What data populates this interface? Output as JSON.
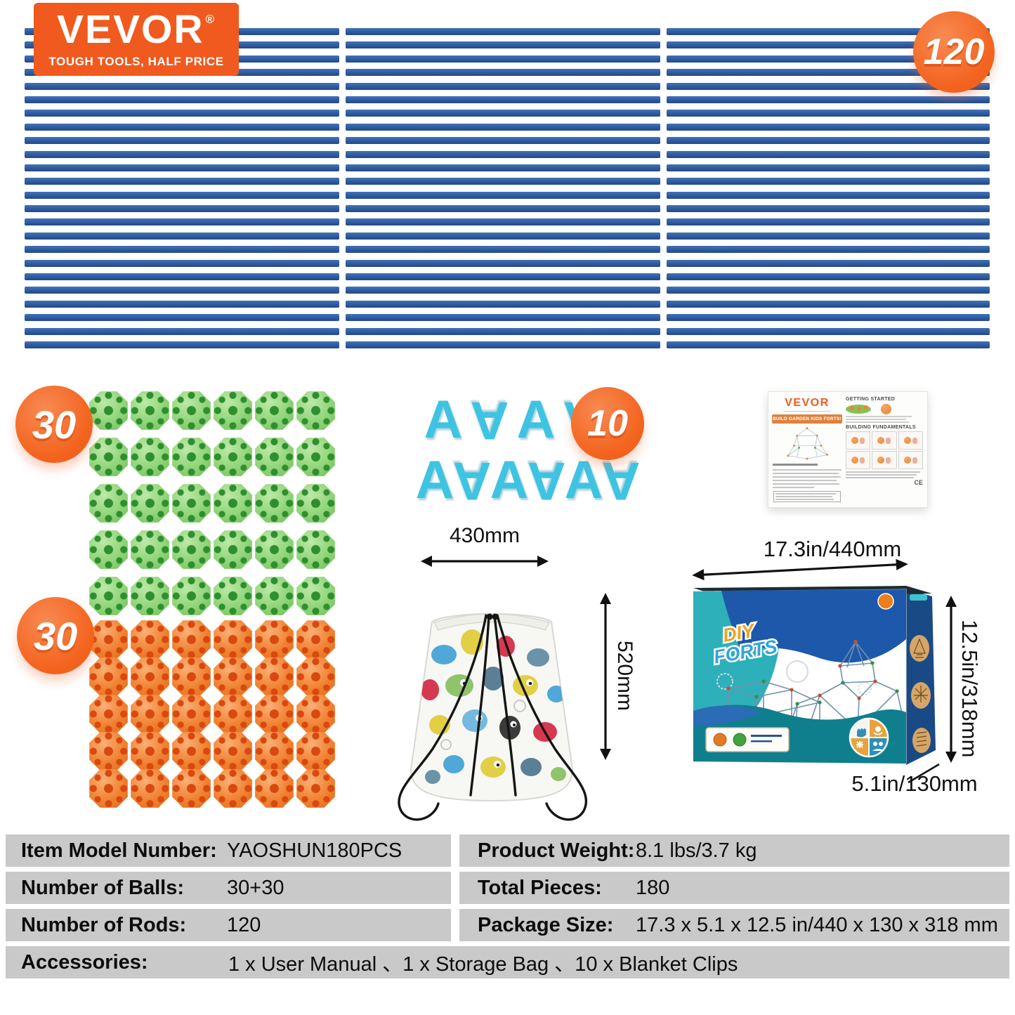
{
  "brand": {
    "name": "VEVOR",
    "registered": "®",
    "tagline": "TOUGH TOOLS, HALF PRICE"
  },
  "badges": {
    "rods": "120",
    "green_balls": "30",
    "orange_balls": "30",
    "clips": "10"
  },
  "rods": {
    "columns": 3,
    "rows_per_column": 24
  },
  "balls": {
    "rows": 5,
    "columns": 6
  },
  "clips": {
    "top_row": 4,
    "bottom_row": 6
  },
  "manual": {
    "brand": "VEVOR",
    "banner": "BUILD GARDEN KIDS FORTS!",
    "section1": "GETTING STARTED",
    "section2": "BUILDING FUNDAMENTALS",
    "ce_mark": "CE"
  },
  "bag": {
    "width_label": "430mm",
    "height_label": "520mm"
  },
  "box": {
    "logo_line1": "DIY",
    "logo_line2": "FORTS",
    "width_label": "17.3in/440mm",
    "height_label": "12.5in/318mm",
    "depth_label": "5.1in/130mm"
  },
  "spec_table": {
    "left": [
      {
        "label": "Item Model Number:",
        "value": "YAOSHUN180PCS"
      },
      {
        "label": "Number of Balls:",
        "value": "30+30"
      },
      {
        "label": "Number of Rods:",
        "value": "120"
      }
    ],
    "right": [
      {
        "label": "Product Weight:",
        "value": "8.1 lbs/3.7 kg"
      },
      {
        "label": "Total Pieces:",
        "value": "180"
      },
      {
        "label": "Package Size:",
        "value": "17.3 x 5.1 x 12.5 in/440 x 130 x 318 mm"
      }
    ],
    "full": {
      "label": "Accessories:",
      "value": "1 x User Manual 、1 x Storage Bag 、10 x Blanket Clips"
    }
  },
  "colors": {
    "brand_orange": "#F05A1E",
    "rod_blue": "#2D5BA3",
    "ball_green": "#8FD478",
    "ball_orange": "#F08030",
    "clip_cyan": "#3EC4E2",
    "table_gray": "#C9C9C9"
  }
}
